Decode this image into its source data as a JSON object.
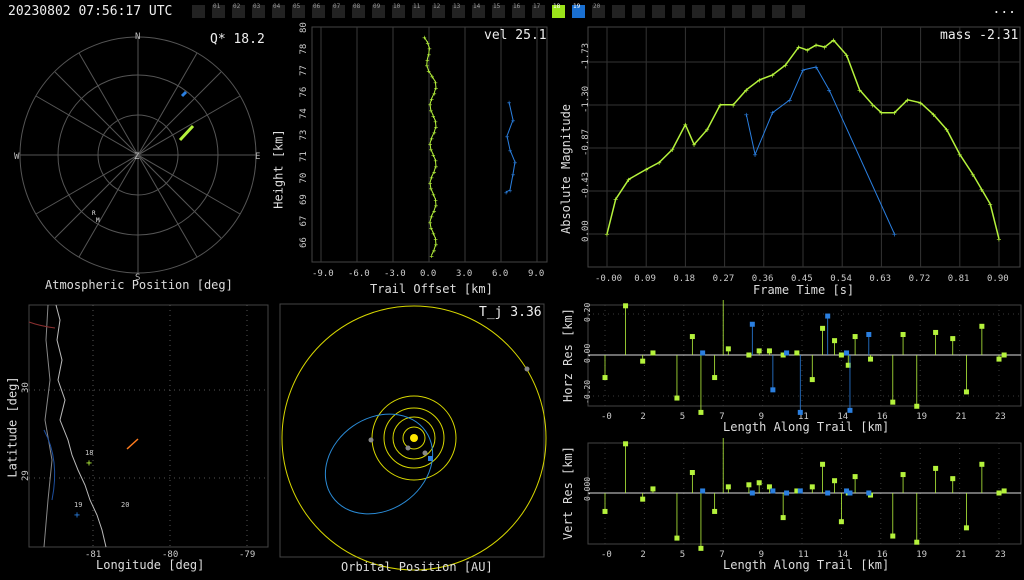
{
  "header": {
    "datetime": "20230802 07:56:17 UTC",
    "menu": "..."
  },
  "stations": [
    {
      "label": "",
      "active": false
    },
    {
      "label": "01",
      "active": false
    },
    {
      "label": "02",
      "active": false
    },
    {
      "label": "03",
      "active": false
    },
    {
      "label": "04",
      "active": false
    },
    {
      "label": "05",
      "active": false
    },
    {
      "label": "06",
      "active": false
    },
    {
      "label": "07",
      "active": false
    },
    {
      "label": "08",
      "active": false
    },
    {
      "label": "09",
      "active": false
    },
    {
      "label": "10",
      "active": false
    },
    {
      "label": "11",
      "active": false
    },
    {
      "label": "12",
      "active": false
    },
    {
      "label": "13",
      "active": false
    },
    {
      "label": "14",
      "active": false
    },
    {
      "label": "15",
      "active": false
    },
    {
      "label": "16",
      "active": false
    },
    {
      "label": "17",
      "active": false
    },
    {
      "label": "18",
      "active": true,
      "color": "#9be31a"
    },
    {
      "label": "19",
      "active": true,
      "color": "#1a6fd0"
    },
    {
      "label": "20",
      "active": false
    },
    {
      "label": "",
      "active": false
    },
    {
      "label": "",
      "active": false
    },
    {
      "label": "",
      "active": false
    },
    {
      "label": "",
      "active": false
    },
    {
      "label": "",
      "active": false
    },
    {
      "label": "",
      "active": false
    },
    {
      "label": "",
      "active": false
    },
    {
      "label": "",
      "active": false
    },
    {
      "label": "",
      "active": false
    },
    {
      "label": "",
      "active": false
    }
  ],
  "colors": {
    "green": "#b5f23c",
    "blue": "#2a7fe0",
    "grid": "#444",
    "yellow": "#e6e600"
  },
  "atmo": {
    "title": "Atmospheric Position [deg]",
    "value": "Q* 18.2",
    "north": "N",
    "south": "S",
    "east": "E",
    "west": "W",
    "zenith": "Z",
    "r": "R",
    "m": "M"
  },
  "height": {
    "title": "Trail Offset [km]",
    "ylabel": "Height [km]",
    "value": "vel 25.1",
    "xticks": [
      "-9.0",
      "-6.0",
      "-3.0",
      "0.0",
      "3.0",
      "6.0",
      "9.0"
    ],
    "yticks": [
      "66",
      "67",
      "69",
      "70",
      "71",
      "73",
      "74",
      "76",
      "77",
      "78",
      "80"
    ]
  },
  "lightcurve": {
    "title": "Frame Time [s]",
    "ylabel": "Absolute Magnitude",
    "value": "mass -2.31",
    "xticks": [
      "-0.00",
      "0.09",
      "0.18",
      "0.27",
      "0.36",
      "0.45",
      "0.54",
      "0.63",
      "0.72",
      "0.81",
      "0.90"
    ],
    "yticks": [
      "0.00",
      "-0.43",
      "-0.87",
      "-1.30",
      "-1.73"
    ]
  },
  "map": {
    "title": "Longitude [deg]",
    "ylabel": "Latitude [deg]",
    "xticks": [
      "-81",
      "-80",
      "-79"
    ],
    "yticks": [
      "30",
      "29"
    ],
    "labels": [
      "18",
      "19",
      "20"
    ]
  },
  "orbit": {
    "title": "Orbital Position [AU]",
    "value": "T_j 3.36"
  },
  "horz": {
    "title": "Length Along Trail [km]",
    "ylabel": "Horz Res [km]",
    "xticks": [
      "-0",
      "2",
      "5",
      "7",
      "9",
      "11",
      "14",
      "16",
      "19",
      "21",
      "23"
    ],
    "yticks": [
      "0.20",
      "0.00",
      "-0.20"
    ]
  },
  "vert": {
    "title": "Length Along Trail [km]",
    "ylabel": "Vert Res [km]",
    "xticks": [
      "-0",
      "2",
      "5",
      "7",
      "9",
      "11",
      "14",
      "16",
      "19",
      "21",
      "23"
    ],
    "yticks": [
      "0.000"
    ]
  },
  "chart_data": [
    {
      "type": "line",
      "title": "",
      "xlabel": "Frame Time [s]",
      "ylabel": "Absolute Magnitude",
      "xlim": [
        -0.02,
        0.92
      ],
      "ylim": [
        0.1,
        -2.05
      ],
      "series": [
        {
          "name": "18",
          "x": [
            0.0,
            0.02,
            0.05,
            0.09,
            0.12,
            0.15,
            0.18,
            0.2,
            0.23,
            0.26,
            0.29,
            0.32,
            0.35,
            0.38,
            0.41,
            0.44,
            0.46,
            0.48,
            0.5,
            0.52,
            0.55,
            0.58,
            0.61,
            0.63,
            0.66,
            0.69,
            0.72,
            0.75,
            0.78,
            0.81,
            0.84,
            0.86,
            0.88,
            0.9
          ],
          "y": [
            0.0,
            -0.35,
            -0.55,
            -0.65,
            -0.72,
            -0.85,
            -1.1,
            -0.9,
            -1.05,
            -1.3,
            -1.3,
            -1.45,
            -1.55,
            -1.6,
            -1.7,
            -1.88,
            -1.85,
            -1.9,
            -1.88,
            -1.95,
            -1.8,
            -1.45,
            -1.3,
            -1.22,
            -1.22,
            -1.35,
            -1.32,
            -1.2,
            -1.05,
            -0.8,
            -0.6,
            -0.45,
            -0.3,
            0.05
          ]
        },
        {
          "name": "19",
          "x": [
            0.32,
            0.34,
            0.38,
            0.42,
            0.45,
            0.48,
            0.51,
            0.66
          ],
          "y": [
            -1.2,
            -0.8,
            -1.22,
            -1.35,
            -1.65,
            -1.68,
            -1.45,
            0.0
          ]
        }
      ]
    },
    {
      "type": "scatter",
      "title": "",
      "xlabel": "Length Along Trail [km]",
      "ylabel": "Horz Res [km]",
      "xlim": [
        -0.8,
        24
      ],
      "ylim": [
        -0.3,
        0.3
      ],
      "series": [
        {
          "name": "18",
          "x": [
            0,
            1.2,
            2.2,
            2.8,
            4.2,
            5.1,
            5.6,
            6.4,
            6.9,
            7.2,
            8.4,
            9.0,
            9.6,
            10.4,
            11.2,
            12.1,
            12.7,
            13.4,
            13.8,
            14.2,
            14.6,
            15.5,
            16.8,
            17.4,
            18.2,
            19.3,
            20.3,
            21.1,
            22.0,
            23.0,
            23.3
          ],
          "y": [
            -0.11,
            0.24,
            -0.03,
            0.01,
            -0.21,
            0.09,
            -0.28,
            -0.11,
            0.3,
            0.03,
            0.0,
            0.02,
            0.02,
            0.0,
            0.01,
            -0.12,
            0.13,
            0.07,
            0.0,
            -0.05,
            0.09,
            -0.02,
            -0.23,
            0.1,
            -0.25,
            0.11,
            0.08,
            -0.18,
            0.14,
            -0.02,
            0.0
          ]
        },
        {
          "name": "19",
          "x": [
            5.7,
            8.6,
            9.8,
            10.6,
            11.4,
            13.0,
            14.1,
            14.3,
            15.4
          ],
          "y": [
            0.01,
            0.15,
            -0.17,
            0.01,
            -0.28,
            0.19,
            0.01,
            -0.27,
            0.1
          ]
        }
      ]
    },
    {
      "type": "scatter",
      "title": "",
      "xlabel": "Length Along Trail [km]",
      "ylabel": "Vert Res [km]",
      "xlim": [
        -0.8,
        24
      ],
      "ylim": [
        -0.3,
        0.3
      ],
      "series": [
        {
          "name": "18",
          "x": [
            0,
            1.2,
            2.2,
            2.8,
            4.2,
            5.1,
            5.6,
            6.4,
            6.9,
            7.2,
            8.4,
            9.0,
            9.6,
            10.4,
            11.2,
            12.1,
            12.7,
            13.4,
            13.8,
            14.2,
            14.6,
            15.5,
            16.8,
            17.4,
            18.2,
            19.3,
            20.3,
            21.1,
            22.0,
            23.0,
            23.3
          ],
          "y": [
            -0.09,
            0.24,
            -0.03,
            0.02,
            -0.22,
            0.1,
            -0.27,
            -0.09,
            0.3,
            0.03,
            0.04,
            0.05,
            0.03,
            -0.12,
            0.01,
            0.03,
            0.14,
            0.06,
            -0.14,
            0.0,
            0.08,
            -0.01,
            -0.21,
            0.09,
            -0.24,
            0.12,
            0.07,
            -0.17,
            0.14,
            0.0,
            0.01
          ]
        },
        {
          "name": "19",
          "x": [
            5.7,
            8.6,
            9.8,
            10.6,
            11.4,
            13.0,
            14.1,
            14.3,
            15.4
          ],
          "y": [
            0.01,
            0.0,
            0.01,
            0.0,
            0.01,
            0.0,
            0.01,
            0.0,
            0.0
          ]
        }
      ]
    }
  ]
}
